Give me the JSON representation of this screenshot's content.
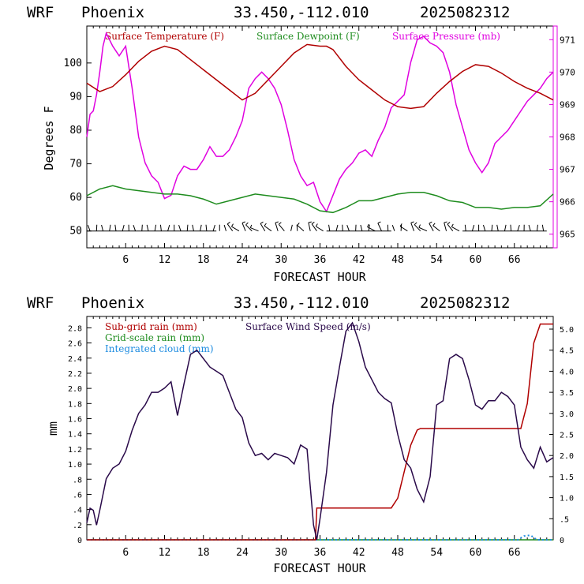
{
  "chart_data": [
    {
      "type": "line",
      "header": {
        "model": "WRF",
        "station": "Phoenix",
        "coords": "33.450,-112.010",
        "run": "2025082312"
      },
      "xlabel": "FORECAST HOUR",
      "ylabel": "Degrees F",
      "xlim": [
        0,
        72
      ],
      "xticks": [
        6,
        12,
        18,
        24,
        30,
        36,
        42,
        48,
        54,
        60,
        66
      ],
      "ylim": [
        45,
        111
      ],
      "yticks": [
        50,
        60,
        70,
        80,
        90,
        100
      ],
      "y2lim": [
        964.58,
        971.42
      ],
      "y2ticks": [
        965,
        966,
        967,
        968,
        969,
        970,
        971
      ],
      "legend": [
        "Surface Temperature (F)",
        "Surface Dewpoint (F)",
        "Surface Pressure (mb)"
      ],
      "colors": {
        "temperature": "#b00000",
        "dewpoint": "#1e8c1e",
        "pressure": "#e000e0",
        "wind_barbs": "#000000"
      },
      "series": [
        {
          "name": "Surface Temperature (F)",
          "axis": "left",
          "x": [
            0,
            2,
            4,
            6,
            8,
            10,
            12,
            14,
            16,
            18,
            20,
            22,
            24,
            26,
            28,
            30,
            32,
            34,
            36,
            37,
            38,
            40,
            42,
            44,
            46,
            48,
            50,
            52,
            54,
            56,
            58,
            60,
            62,
            64,
            66,
            68,
            70,
            72
          ],
          "y": [
            94,
            91.5,
            93,
            96.5,
            100.5,
            103.5,
            105,
            104,
            101,
            98,
            95,
            92,
            89,
            91,
            95,
            99,
            103,
            105.5,
            105,
            105,
            104,
            99,
            95,
            92,
            89,
            87,
            86.5,
            87,
            91,
            94.5,
            97.5,
            99.5,
            99,
            97,
            94.5,
            92.5,
            91,
            89
          ]
        },
        {
          "name": "Surface Dewpoint (F)",
          "axis": "left",
          "x": [
            0,
            2,
            4,
            6,
            8,
            10,
            12,
            14,
            16,
            18,
            20,
            22,
            24,
            26,
            28,
            30,
            32,
            34,
            36,
            38,
            40,
            42,
            44,
            46,
            48,
            50,
            52,
            54,
            56,
            58,
            60,
            62,
            64,
            66,
            68,
            70,
            72
          ],
          "y": [
            60.5,
            62.5,
            63.5,
            62.5,
            62,
            61.5,
            61,
            61,
            60.5,
            59.5,
            58,
            59,
            60,
            61,
            60.5,
            60,
            59.5,
            58,
            56,
            55.5,
            57,
            59,
            59,
            60,
            61,
            61.5,
            61.5,
            60.5,
            59,
            58.5,
            57,
            57,
            56.5,
            57,
            57,
            57.5,
            61
          ]
        },
        {
          "name": "Surface Pressure (mb)",
          "axis": "right",
          "x": [
            0,
            0.5,
            1,
            1.5,
            2,
            2.5,
            3,
            4,
            5,
            6,
            7,
            8,
            9,
            10,
            11,
            12,
            13,
            14,
            15,
            16,
            17,
            18,
            19,
            20,
            21,
            22,
            23,
            24,
            25,
            26,
            27,
            28,
            29,
            30,
            31,
            32,
            33,
            34,
            35,
            36,
            37,
            38,
            39,
            40,
            41,
            42,
            43,
            44,
            45,
            46,
            47,
            48,
            49,
            50,
            51,
            52,
            53,
            54,
            55,
            56,
            57,
            58,
            59,
            60,
            61,
            62,
            63,
            64,
            65,
            66,
            67,
            68,
            69,
            70,
            71,
            72
          ],
          "y": [
            968.0,
            968.7,
            968.8,
            969.3,
            970.0,
            970.8,
            971.2,
            970.8,
            970.5,
            970.8,
            969.5,
            968.0,
            967.2,
            966.8,
            966.6,
            966.1,
            966.2,
            966.8,
            967.1,
            967.0,
            967.0,
            967.3,
            967.7,
            967.4,
            967.4,
            967.6,
            968.0,
            968.5,
            969.5,
            969.8,
            970.0,
            969.8,
            969.5,
            969.0,
            968.2,
            967.3,
            966.8,
            966.5,
            966.6,
            966.0,
            965.7,
            966.2,
            966.7,
            967.0,
            967.2,
            967.5,
            967.6,
            967.4,
            967.9,
            968.3,
            968.9,
            969.1,
            969.3,
            970.3,
            971.0,
            971.1,
            970.9,
            970.8,
            970.6,
            970.0,
            969.0,
            968.3,
            967.6,
            967.2,
            966.9,
            967.2,
            967.8,
            968.0,
            968.2,
            968.5,
            968.8,
            969.1,
            969.3,
            969.5,
            969.8,
            970.0
          ]
        }
      ],
      "wind_barbs": {
        "y_level": 50,
        "x_start": 0.5,
        "x_step": 1,
        "count": 71,
        "strong_hours": [
          22,
          23,
          24,
          25,
          26,
          27,
          28,
          29,
          30,
          33,
          34,
          35,
          36,
          44,
          45,
          49,
          50,
          51,
          52,
          53,
          54,
          55,
          56,
          57
        ]
      }
    },
    {
      "type": "line",
      "header": {
        "model": "WRF",
        "station": "Phoenix",
        "coords": "33.450,-112.010",
        "run": "2025082312"
      },
      "xlabel": "FORECAST HOUR",
      "ylabel": "mm",
      "xlim": [
        0,
        72
      ],
      "xticks": [
        6,
        12,
        18,
        24,
        30,
        36,
        42,
        48,
        54,
        60,
        66
      ],
      "ylim": [
        0,
        2.95
      ],
      "yticks": [
        0,
        0.2,
        0.4,
        0.6,
        0.8,
        1.0,
        1.2,
        1.4,
        1.6,
        1.8,
        2.0,
        2.2,
        2.4,
        2.6,
        2.8
      ],
      "ytick_labels": [
        "0",
        ".2",
        ".4",
        ".6",
        ".8",
        "1.0",
        "1.2",
        "1.4",
        "1.6",
        "1.8",
        "2.0",
        "2.2",
        "2.4",
        "2.6",
        "2.8"
      ],
      "y2lim": [
        0,
        5.3
      ],
      "y2ticks": [
        0,
        0.5,
        1.0,
        1.5,
        2.0,
        2.5,
        3.0,
        3.5,
        4.0,
        4.5,
        5.0
      ],
      "y2tick_labels": [
        "0",
        ".5",
        "1.0",
        "1.5",
        "2.0",
        "2.5",
        "3.0",
        "3.5",
        "4.0",
        "4.5",
        "5.0"
      ],
      "legend": [
        "Sub-grid rain (mm)",
        "Grid-scale rain (mm)",
        "Integrated cloud (mm)",
        "Surface Wind Speed (m/s)"
      ],
      "colors": {
        "subgrid_rain": "#b00000",
        "grid_rain": "#1e8c1e",
        "cloud": "#1e8ce0",
        "wind_speed": "#2a0a4a"
      },
      "series": [
        {
          "name": "Sub-grid rain (mm)",
          "axis": "left",
          "x": [
            0,
            35.3,
            35.5,
            47.0,
            48.0,
            49.0,
            50.0,
            51.0,
            51.5,
            52.0,
            67.0,
            68.0,
            69.0,
            70.0,
            72.0
          ],
          "y": [
            0,
            0,
            0.42,
            0.42,
            0.55,
            0.9,
            1.25,
            1.45,
            1.47,
            1.47,
            1.47,
            1.8,
            2.6,
            2.85,
            2.85
          ]
        },
        {
          "name": "Grid-scale rain (mm)",
          "axis": "left",
          "x": [
            0,
            72
          ],
          "y": [
            0,
            0
          ]
        },
        {
          "name": "Integrated cloud (mm)",
          "axis": "left",
          "x": [
            0,
            66.5,
            67.5,
            68.5,
            69.5,
            72
          ],
          "y": [
            0,
            0,
            0.05,
            0.06,
            0,
            0
          ]
        },
        {
          "name": "Surface Wind Speed (m/s)",
          "axis": "right",
          "x": [
            0,
            0.5,
            1,
            1.5,
            2,
            3,
            4,
            5,
            6,
            7,
            8,
            9,
            10,
            11,
            12,
            13,
            14,
            15,
            16,
            17,
            18,
            19,
            20,
            21,
            22,
            23,
            24,
            25,
            26,
            27,
            28,
            29,
            30,
            31,
            32,
            33,
            34,
            35,
            35.5,
            36,
            37,
            38,
            39,
            40,
            41,
            42,
            43,
            44,
            45,
            46,
            47,
            48,
            49,
            50,
            51,
            52,
            53,
            54,
            55,
            56,
            57,
            58,
            59,
            60,
            61,
            62,
            63,
            64,
            65,
            66,
            67,
            68,
            69,
            70,
            71,
            72
          ],
          "y": [
            0.4,
            0.75,
            0.7,
            0.35,
            0.7,
            1.45,
            1.7,
            1.8,
            2.1,
            2.6,
            3.0,
            3.2,
            3.5,
            3.5,
            3.6,
            3.75,
            2.95,
            3.7,
            4.4,
            4.5,
            4.3,
            4.1,
            4.0,
            3.9,
            3.5,
            3.1,
            2.9,
            2.3,
            2.0,
            2.05,
            1.9,
            2.05,
            2.0,
            1.95,
            1.8,
            2.25,
            2.15,
            0.35,
            0.0,
            0.5,
            1.6,
            3.2,
            4.1,
            4.95,
            5.15,
            4.7,
            4.1,
            3.8,
            3.5,
            3.35,
            3.25,
            2.5,
            1.9,
            1.7,
            1.2,
            0.9,
            1.5,
            3.2,
            3.3,
            4.3,
            4.4,
            4.3,
            3.8,
            3.2,
            3.1,
            3.3,
            3.3,
            3.5,
            3.4,
            3.2,
            2.2,
            1.9,
            1.7,
            2.2,
            1.85,
            1.95
          ]
        }
      ]
    }
  ]
}
